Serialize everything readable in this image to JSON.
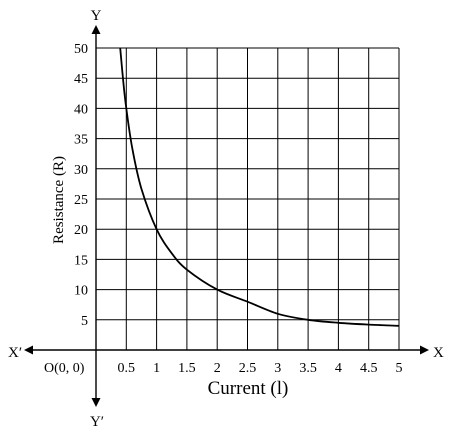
{
  "chart_data": {
    "type": "line",
    "xlabel": "Current (l)",
    "ylabel": "Resistance (R)",
    "x_ticks": [
      "0.5",
      "1",
      "1.5",
      "2",
      "2.5",
      "3",
      "3.5",
      "4",
      "4.5",
      "5"
    ],
    "y_ticks": [
      "5",
      "10",
      "15",
      "20",
      "25",
      "30",
      "35",
      "40",
      "45",
      "50"
    ],
    "xlim": [
      0,
      5
    ],
    "ylim": [
      0,
      50
    ],
    "grid": true,
    "axis_names": {
      "x_pos": "X",
      "x_neg": "X′",
      "y_pos": "Y",
      "y_neg": "Y′"
    },
    "origin_label": "O(0, 0)",
    "series": [
      {
        "x": [
          0.4,
          0.45,
          0.5,
          0.6,
          0.75,
          1,
          1.25,
          1.5,
          2,
          2.5,
          3,
          3.5,
          4,
          4.5,
          5
        ],
        "y": [
          50,
          44.4,
          40,
          33.3,
          26.7,
          20,
          16,
          13.3,
          10,
          8,
          6,
          5,
          4.5,
          4.2,
          4
        ],
        "color": "#000000"
      }
    ]
  }
}
